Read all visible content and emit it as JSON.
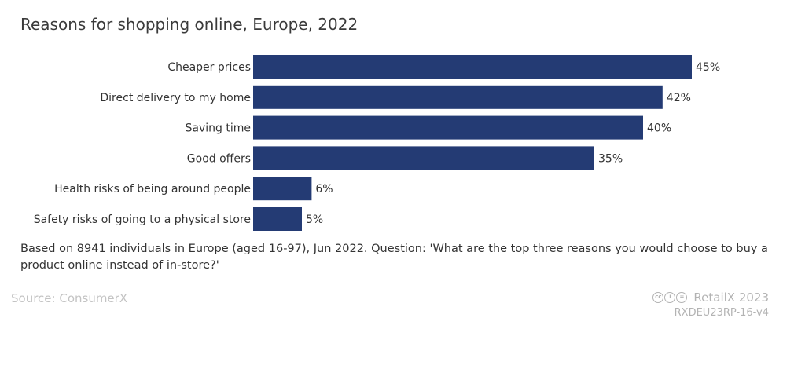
{
  "title": "Reasons for shopping online, Europe, 2022",
  "colors": {
    "bar": "#243b74",
    "text": "#333333",
    "muted": "#b3b3b3"
  },
  "chart_data": {
    "type": "bar",
    "orientation": "horizontal",
    "categories": [
      "Cheaper prices",
      "Direct delivery to my home",
      "Saving time",
      "Good offers",
      "Health risks of being around people",
      "Safety risks of going to a physical store"
    ],
    "values": [
      45,
      42,
      40,
      35,
      6,
      5
    ],
    "value_labels": [
      "45%",
      "42%",
      "40%",
      "35%",
      "6%",
      "5%"
    ],
    "unit": "%",
    "xlim": [
      0,
      45
    ],
    "grid": false,
    "legend": "none",
    "title": "Reasons for shopping online, Europe, 2022"
  },
  "note": "Based on 8941 individuals in Europe (aged 16-97), Jun 2022. Question: 'What are the top three reasons you would choose to buy a product online instead of in-store?'",
  "source": "Source: ConsumerX",
  "brand": "RetailX 2023",
  "code": "RXDEU23RP-16-v4",
  "license_icons": [
    "cc-icon",
    "by-icon",
    "nd-icon"
  ]
}
